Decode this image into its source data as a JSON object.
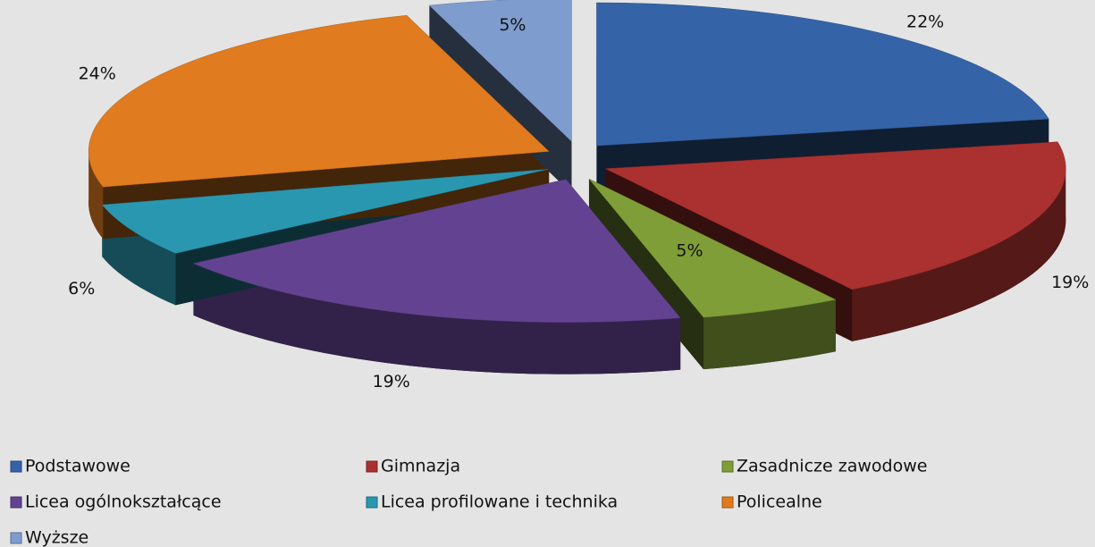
{
  "chart_data": {
    "type": "pie",
    "categories": [
      "Podstawowe",
      "Gimnazja",
      "Zasadnicze zawodowe",
      "Licea ogólnokształcące",
      "Licea profilowane i technika",
      "Policealne",
      "Wyższe"
    ],
    "values": [
      22,
      19,
      5,
      19,
      6,
      24,
      5
    ],
    "value_labels": [
      "22%",
      "19%",
      "5%",
      "19%",
      "6%",
      "24%",
      "5%"
    ],
    "colors": [
      "#3563a8",
      "#aa3130",
      "#7f9e37",
      "#634391",
      "#2a97b0",
      "#e07b1f",
      "#7f9ccf"
    ],
    "legend": "bottom"
  }
}
